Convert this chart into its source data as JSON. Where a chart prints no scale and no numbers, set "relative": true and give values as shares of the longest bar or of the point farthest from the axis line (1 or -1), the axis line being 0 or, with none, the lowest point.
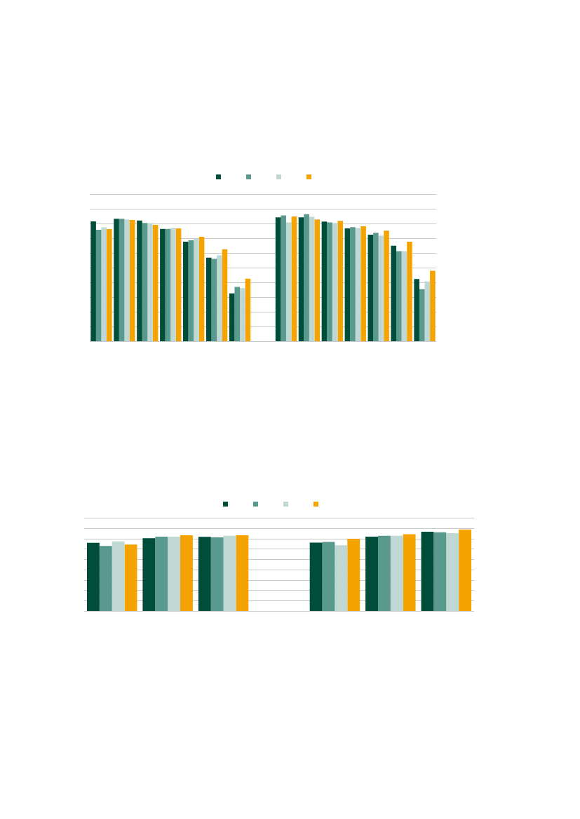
{
  "chart_data": [
    {
      "type": "bar",
      "relative": true,
      "grid": "y",
      "categories": [
        null,
        null,
        null,
        null,
        null,
        null,
        null
      ],
      "series": [
        {
          "color": "#004d3a",
          "values": [
            0.978,
            1,
            0.985,
            0.917,
            0.812,
            0.682,
            0.391
          ]
        },
        {
          "color": "#5a998d",
          "values": [
            0.909,
            1,
            0.965,
            0.917,
            0.824,
            0.672,
            0.443
          ]
        },
        {
          "color": "#c0d8d4",
          "values": [
            0.93,
            0.994,
            0.963,
            0.924,
            0.841,
            0.701,
            0.433
          ]
        },
        {
          "color": "#f5a300",
          "values": [
            0.915,
            0.99,
            0.95,
            0.921,
            0.852,
            0.751,
            0.511
          ]
        }
      ]
    },
    {
      "type": "bar",
      "relative": true,
      "grid": "y",
      "categories": [
        null,
        null,
        null,
        null,
        null,
        null,
        null
      ],
      "series": [
        {
          "color": "#004d3a",
          "values": [
            0.975,
            0.975,
            0.941,
            0.888,
            0.838,
            0.752,
            0.49
          ]
        },
        {
          "color": "#5a998d",
          "values": [
            0.99,
            1,
            0.935,
            0.897,
            0.853,
            0.709,
            0.41
          ]
        },
        {
          "color": "#c0d8d4",
          "values": [
            0.935,
            0.979,
            0.93,
            0.891,
            0.83,
            0.709,
            0.47
          ]
        },
        {
          "color": "#f5a300",
          "values": [
            0.981,
            0.958,
            0.947,
            0.905,
            0.87,
            0.783,
            0.554
          ]
        }
      ]
    },
    {
      "type": "bar",
      "relative": true,
      "grid": "y",
      "categories": [
        null,
        null,
        null
      ],
      "series": [
        {
          "color": "#004d3a",
          "values": [
            0.902,
            0.962,
            0.98
          ]
        },
        {
          "color": "#5a998d",
          "values": [
            0.86,
            0.983,
            0.972
          ]
        },
        {
          "color": "#c0d8d4",
          "values": [
            0.919,
            0.983,
            0.994
          ]
        },
        {
          "color": "#f5a300",
          "values": [
            0.877,
            1,
            1
          ]
        }
      ]
    },
    {
      "type": "bar",
      "relative": true,
      "grid": "y",
      "categories": [
        null,
        null,
        null
      ],
      "series": [
        {
          "color": "#004d3a",
          "values": [
            0.837,
            0.912,
            0.971
          ]
        },
        {
          "color": "#5a998d",
          "values": [
            0.847,
            0.922,
            0.964
          ]
        },
        {
          "color": "#c0d8d4",
          "values": [
            0.805,
            0.922,
            0.954
          ]
        },
        {
          "color": "#f5a300",
          "values": [
            0.886,
            0.941,
            1
          ]
        }
      ]
    }
  ]
}
